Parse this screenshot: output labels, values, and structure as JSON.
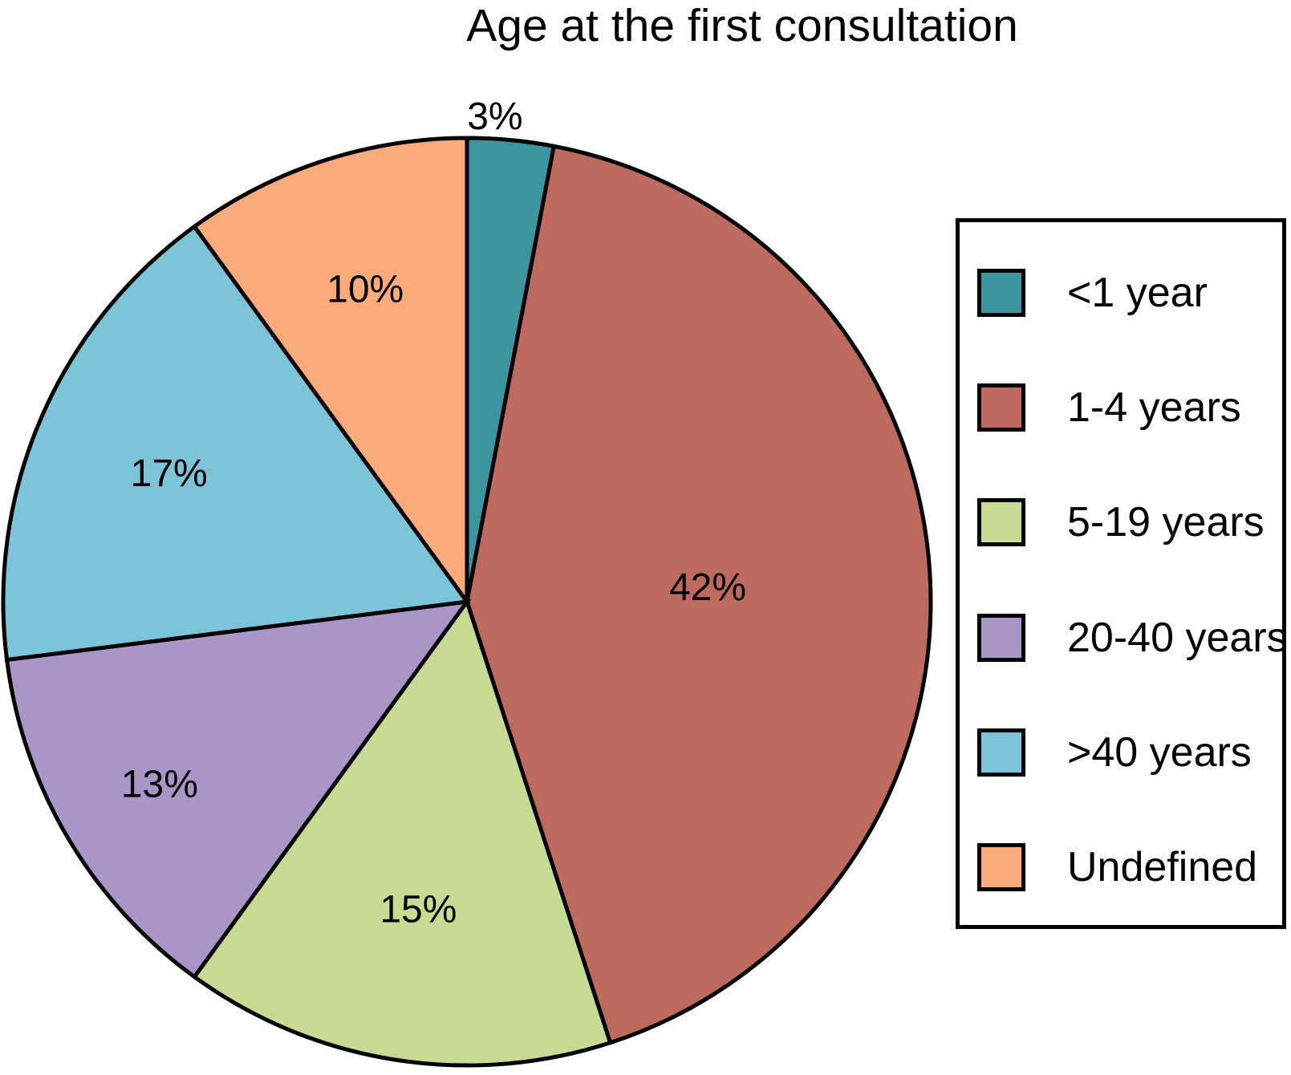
{
  "chart_data": {
    "type": "pie",
    "title": "Age at the first consultation",
    "categories": [
      "<1 year",
      "1-4 years",
      "5-19 years",
      "20-40 years",
      ">40 years",
      "Undefined"
    ],
    "values": [
      3,
      42,
      15,
      13,
      17,
      10
    ],
    "slices": [
      {
        "label": "<1 year",
        "value": 3,
        "pct_label": "3%",
        "color": "#3D95A0",
        "label_r": 1.05,
        "label_angle": 3.3
      },
      {
        "label": "1-4 years",
        "value": 42,
        "pct_label": "42%",
        "color": "#BF6A5F",
        "label_r": 0.52
      },
      {
        "label": "5-19 years",
        "value": 15,
        "pct_label": "15%",
        "color": "#C7DC92",
        "label_r": 0.67
      },
      {
        "label": "20-40 years",
        "value": 13,
        "pct_label": "13%",
        "color": "#A995C6",
        "label_r": 0.77
      },
      {
        "label": ">40 years",
        "value": 17,
        "pct_label": "17%",
        "color": "#7CC5D8",
        "label_r": 0.7
      },
      {
        "label": "Undefined",
        "value": 10,
        "pct_label": "10%",
        "color": "#FBAA79",
        "label_r": 0.71
      }
    ],
    "start_angle_deg": 0,
    "direction": "clockwise",
    "legend_position": "right",
    "outline_color": "#000000",
    "outline_width": 5,
    "background": "#FFFFFF"
  }
}
